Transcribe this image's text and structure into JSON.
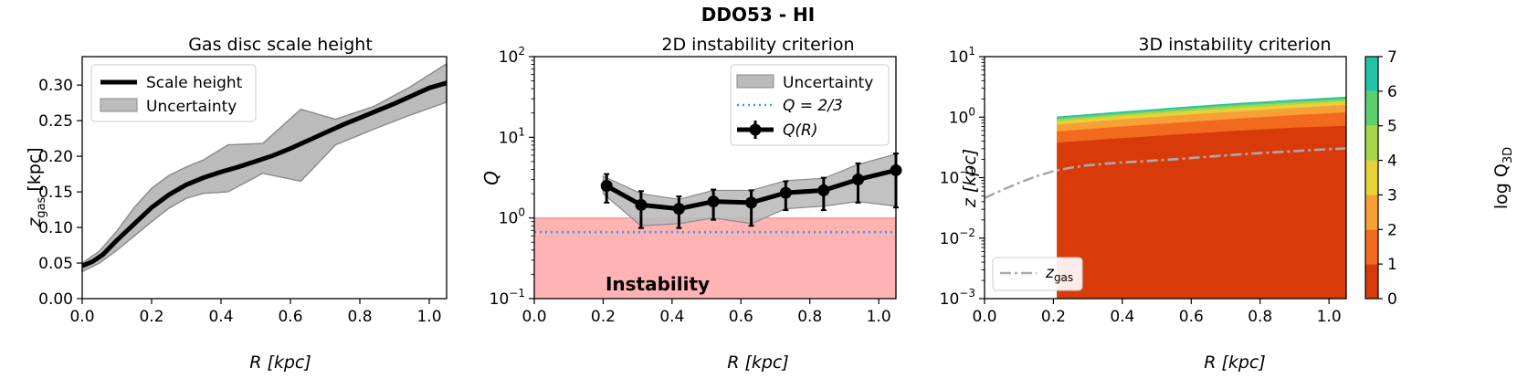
{
  "figure": {
    "suptitle": "DDO53 - HI"
  },
  "chart_data": [
    {
      "type": "line",
      "title": "Gas disc scale height",
      "xlabel": "R [kpc]",
      "ylabel": "z_gas [kpc]",
      "ylabel_main": "z",
      "ylabel_sub": "gas",
      "ylabel_unit": " [kpc]",
      "xlim": [
        0.0,
        1.05
      ],
      "ylim": [
        0.0,
        0.34
      ],
      "xticks": [
        0.0,
        0.2,
        0.4,
        0.6,
        0.8,
        1.0
      ],
      "xtick_labels": [
        "0.0",
        "0.2",
        "0.4",
        "0.6",
        "0.8",
        "1.0"
      ],
      "yticks": [
        0.0,
        0.05,
        0.1,
        0.15,
        0.2,
        0.25,
        0.3
      ],
      "ytick_labels": [
        "0.00",
        "0.05",
        "0.10",
        "0.15",
        "0.20",
        "0.25",
        "0.30"
      ],
      "legend_position": "top-left",
      "series": [
        {
          "name": "Scale height",
          "color": "#000000",
          "x": [
            0.0,
            0.03,
            0.06,
            0.1,
            0.15,
            0.2,
            0.25,
            0.3,
            0.35,
            0.4,
            0.45,
            0.5,
            0.55,
            0.6,
            0.65,
            0.7,
            0.75,
            0.8,
            0.85,
            0.9,
            0.95,
            1.0,
            1.05
          ],
          "y": [
            0.046,
            0.052,
            0.062,
            0.082,
            0.105,
            0.128,
            0.146,
            0.16,
            0.17,
            0.178,
            0.185,
            0.193,
            0.201,
            0.211,
            0.222,
            0.233,
            0.244,
            0.254,
            0.264,
            0.274,
            0.285,
            0.296,
            0.303
          ]
        },
        {
          "name": "Uncertainty",
          "color": "#bbbbbb",
          "x": [
            0.0,
            0.05,
            0.1,
            0.15,
            0.2,
            0.25,
            0.3,
            0.35,
            0.42,
            0.52,
            0.63,
            0.73,
            0.84,
            0.94,
            1.05
          ],
          "upper": [
            0.05,
            0.067,
            0.095,
            0.128,
            0.155,
            0.173,
            0.185,
            0.195,
            0.216,
            0.218,
            0.266,
            0.252,
            0.27,
            0.296,
            0.33
          ],
          "lower": [
            0.038,
            0.05,
            0.068,
            0.088,
            0.108,
            0.127,
            0.141,
            0.148,
            0.15,
            0.176,
            0.165,
            0.216,
            0.238,
            0.257,
            0.276
          ]
        }
      ]
    },
    {
      "type": "line",
      "title": "2D instability criterion",
      "xlabel": "R [kpc]",
      "ylabel": "Q",
      "scale_y": "log",
      "xlim": [
        0.0,
        1.05
      ],
      "ylim": [
        0.1,
        100
      ],
      "xticks": [
        0.0,
        0.2,
        0.4,
        0.6,
        0.8,
        1.0
      ],
      "xtick_labels": [
        "0.0",
        "0.2",
        "0.4",
        "0.6",
        "0.8",
        "1.0"
      ],
      "yticks_exp": [
        -1,
        0,
        1,
        2
      ],
      "legend_position": "top-right",
      "instability_region": {
        "label": "Instability",
        "below": 1.0,
        "color": "#ffb3b3",
        "label_color": "#ff0000"
      },
      "series": [
        {
          "name": "Uncertainty",
          "color": "#bbbbbb",
          "x": [
            0.2,
            0.31,
            0.42,
            0.52,
            0.63,
            0.73,
            0.84,
            0.94,
            1.05
          ],
          "upper": [
            3.3,
            2.0,
            1.7,
            2.2,
            2.2,
            2.9,
            3.1,
            4.6,
            6.2
          ],
          "lower": [
            2.0,
            0.8,
            0.85,
            1.0,
            0.85,
            1.3,
            1.4,
            1.6,
            1.4
          ]
        },
        {
          "name": "Q = 2/3",
          "label_math": "Q = 2/3",
          "color": "#3399ff",
          "value": 0.667
        },
        {
          "name": "Q(R)",
          "label_math": "Q(R)",
          "color": "#000000",
          "x": [
            0.21,
            0.31,
            0.42,
            0.52,
            0.63,
            0.73,
            0.84,
            0.94,
            1.05
          ],
          "y": [
            2.5,
            1.45,
            1.3,
            1.6,
            1.55,
            2.05,
            2.2,
            3.0,
            3.9
          ],
          "err_low": [
            1.55,
            0.75,
            0.75,
            0.95,
            0.8,
            1.25,
            1.25,
            1.55,
            1.35
          ],
          "err_high": [
            3.5,
            2.15,
            1.85,
            2.25,
            2.2,
            2.85,
            3.15,
            4.75,
            6.3
          ]
        }
      ]
    },
    {
      "type": "area",
      "title": "3D instability criterion",
      "xlabel": "R [kpc]",
      "ylabel": "z [kpc]",
      "scale_y": "log",
      "xlim": [
        0.0,
        1.05
      ],
      "ylim": [
        0.001,
        10
      ],
      "xticks": [
        0.0,
        0.2,
        0.4,
        0.6,
        0.8,
        1.0
      ],
      "xtick_labels": [
        "0.0",
        "0.2",
        "0.4",
        "0.6",
        "0.8",
        "1.0"
      ],
      "yticks_exp": [
        -3,
        -2,
        -1,
        0,
        1
      ],
      "legend_position": "bottom-left",
      "data_start_x": 0.21,
      "contour_levels": [
        {
          "range": [
            0,
            1
          ],
          "color": "#d93a0a",
          "z_top": [
            0.38,
            0.45,
            0.52,
            0.6,
            0.67,
            0.72
          ]
        },
        {
          "range": [
            1,
            2
          ],
          "color": "#f26a1e",
          "z_top": [
            0.58,
            0.7,
            0.82,
            0.95,
            1.08,
            1.2
          ]
        },
        {
          "range": [
            2,
            3
          ],
          "color": "#f7a036",
          "z_top": [
            0.75,
            0.92,
            1.08,
            1.25,
            1.42,
            1.6
          ]
        },
        {
          "range": [
            3,
            4
          ],
          "color": "#e8d23a",
          "z_top": [
            0.85,
            1.05,
            1.22,
            1.42,
            1.62,
            1.8
          ]
        },
        {
          "range": [
            4,
            5
          ],
          "color": "#a7d64a",
          "z_top": [
            0.92,
            1.12,
            1.32,
            1.55,
            1.75,
            1.95
          ]
        },
        {
          "range": [
            5,
            6
          ],
          "color": "#5ccf6e",
          "z_top": [
            0.97,
            1.18,
            1.4,
            1.63,
            1.85,
            2.06
          ]
        },
        {
          "range": [
            6,
            7
          ],
          "color": "#22c3a7",
          "z_top": [
            1.02,
            1.24,
            1.47,
            1.72,
            1.95,
            2.18
          ]
        }
      ],
      "contour_x": [
        0.21,
        0.4,
        0.57,
        0.74,
        0.9,
        1.05
      ],
      "series": [
        {
          "name": "z_gas",
          "label_main": "z",
          "label_sub": "gas",
          "color": "#aaaaaa",
          "x": [
            0.0,
            0.05,
            0.1,
            0.15,
            0.2,
            0.25,
            0.3,
            0.35,
            0.4,
            0.45,
            0.5,
            0.55,
            0.6,
            0.65,
            0.7,
            0.75,
            0.8,
            0.85,
            0.9,
            0.95,
            1.0,
            1.05
          ],
          "y": [
            0.046,
            0.062,
            0.082,
            0.105,
            0.128,
            0.146,
            0.16,
            0.17,
            0.178,
            0.185,
            0.193,
            0.201,
            0.211,
            0.222,
            0.233,
            0.244,
            0.254,
            0.264,
            0.274,
            0.285,
            0.296,
            0.303
          ]
        }
      ],
      "colorbar": {
        "label": "log Q_3D",
        "label_main": "log Q",
        "label_sub": "3D",
        "ticks": [
          0,
          1,
          2,
          3,
          4,
          5,
          6,
          7
        ],
        "tick_labels": [
          "0",
          "1",
          "2",
          "3",
          "4",
          "5",
          "6",
          "7"
        ],
        "colors": [
          "#d93a0a",
          "#f26a1e",
          "#f7a036",
          "#e8d23a",
          "#a7d64a",
          "#5ccf6e",
          "#22c3a7"
        ]
      }
    }
  ]
}
